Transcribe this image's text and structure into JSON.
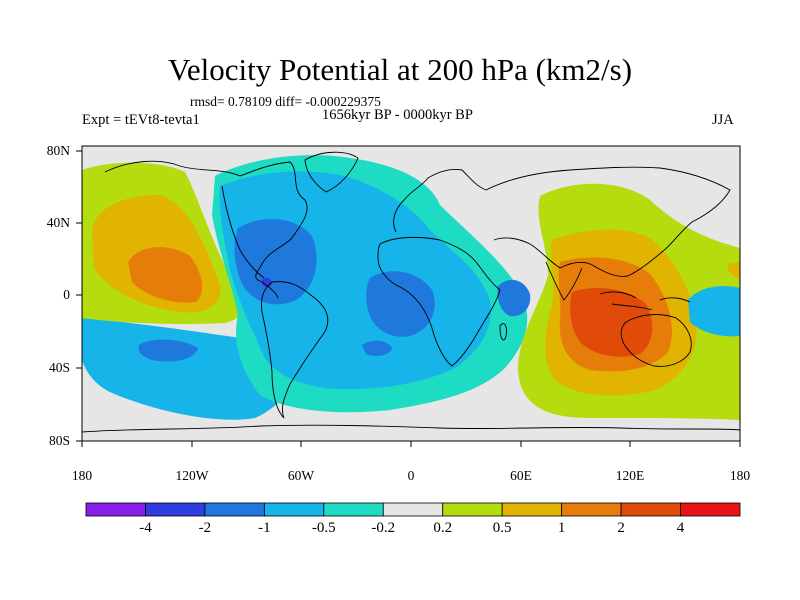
{
  "header": {
    "title": "Velocity Potential at 200 hPa (km2/s)",
    "stats": "rmsd= 0.78109  diff= -0.000229375",
    "period": "1656kyr BP - 0000kyr BP",
    "experiment": "Expt = tEVt8-tevta1",
    "season": "JJA"
  },
  "axes": {
    "lat_labels": [
      "80N",
      "40N",
      "0",
      "40S",
      "80S"
    ],
    "lat_values": [
      80,
      40,
      0,
      -40,
      -80
    ],
    "lon_labels": [
      "180",
      "120W",
      "60W",
      "0",
      "60E",
      "120E",
      "180"
    ],
    "lon_values": [
      -180,
      -120,
      -60,
      0,
      60,
      120,
      180
    ],
    "lat_range": [
      -90,
      90
    ],
    "lon_range": [
      -180,
      180
    ]
  },
  "colorbar": {
    "labels": [
      "-4",
      "-2",
      "-1",
      "-0.5",
      "-0.2",
      "0.2",
      "0.5",
      "1",
      "2",
      "4"
    ],
    "colors": [
      "#8a1fe8",
      "#2f3ce0",
      "#1f78dc",
      "#16b4e8",
      "#1edcc4",
      "#e6e6e6",
      "#b4dc0f",
      "#e0b400",
      "#e67d0a",
      "#e04b0a",
      "#e61414"
    ]
  },
  "field": {
    "neutral_color": "#e6e6e6",
    "land_outline_color": "#000000"
  }
}
